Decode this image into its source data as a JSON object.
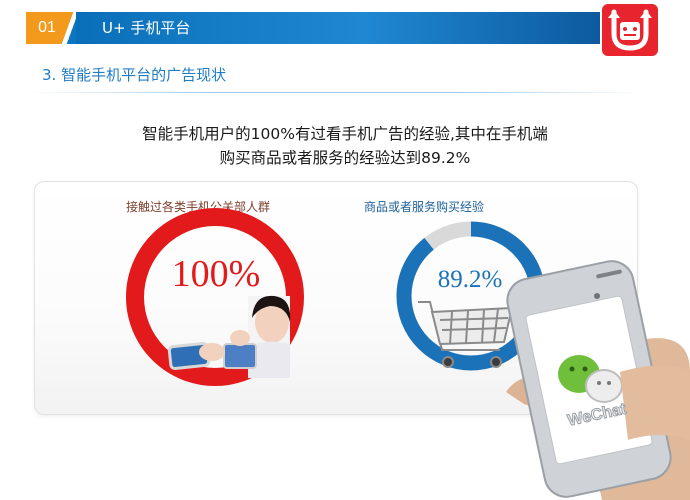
{
  "header": {
    "number": "01",
    "title": "U+ 手机平台"
  },
  "subtitle": "3. 智能手机平台的广告现状",
  "intro": {
    "line1": "智能手机用户的100%有过看手机广告的经验,其中在手机端",
    "line2": "购买商品或者服务的经验达到89.2%"
  },
  "stats": [
    {
      "label": "接触过各类手机公关部人群",
      "value_text": "100%",
      "fraction": 1.0,
      "color": "#e31a1c"
    },
    {
      "label": "商品或者服务购买经验",
      "value_text": "89.2%",
      "fraction": 0.892,
      "color": "#1b72b8"
    }
  ],
  "phone": {
    "app_name": "WeChat"
  },
  "colors": {
    "accent_orange": "#f39a1c",
    "header_blue": "#0a6fb9",
    "ring_red": "#e31a1c",
    "ring_blue": "#1b72b8",
    "ring_track": "#d9d9d9",
    "logo_red": "#e8252e"
  }
}
